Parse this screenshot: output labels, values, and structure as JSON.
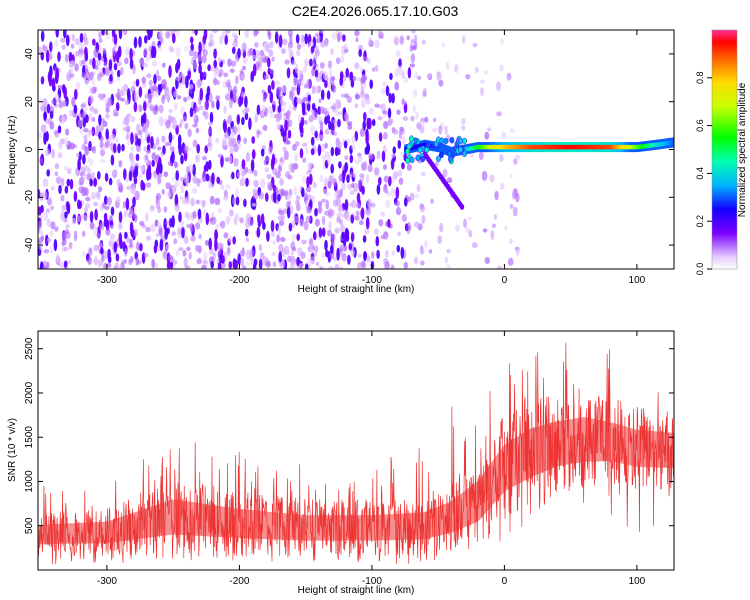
{
  "title": "C2E4.2026.065.17.10.G03",
  "chart_data": [
    {
      "type": "heatmap",
      "xlabel": "Height of straight line (km)",
      "ylabel": "Frequency (Hz)",
      "xlim": [
        -352,
        128
      ],
      "ylim": [
        -50,
        50
      ],
      "xticks": [
        -300,
        -200,
        -100,
        0,
        100
      ],
      "yticks": [
        -40,
        -20,
        0,
        20,
        40
      ],
      "colorbar": {
        "label": "Normalized spectral amplitude",
        "range": [
          0,
          1
        ],
        "ticks": [
          0.0,
          0.2,
          0.4,
          0.6,
          0.8
        ],
        "tick_labels": [
          "0.0",
          "0.2",
          "0.4",
          "0.6",
          "0.8"
        ]
      },
      "signal_line": {
        "x": [
          -75,
          -60,
          -50,
          -40,
          -30,
          -20,
          -10,
          0,
          20,
          50,
          80,
          100,
          115,
          128
        ],
        "y": [
          0,
          2,
          1,
          -1,
          0,
          1,
          1,
          1,
          1,
          1,
          1,
          1,
          2,
          3
        ],
        "amplitude": [
          0.25,
          0.25,
          0.3,
          0.3,
          0.35,
          0.55,
          0.7,
          0.8,
          0.9,
          0.95,
          0.9,
          0.6,
          0.4,
          0.3
        ]
      },
      "noise": {
        "x_range": [
          -352,
          -30
        ],
        "amplitude": 0.15
      },
      "grid": false
    },
    {
      "type": "line",
      "xlabel": "Height of straight line (km)",
      "ylabel": "SNR (10 * v/v)",
      "xlim": [
        -352,
        128
      ],
      "ylim": [
        0,
        2700
      ],
      "xticks": [
        -300,
        -200,
        -100,
        0,
        100
      ],
      "yticks": [
        500,
        1000,
        1500,
        2000,
        2500
      ],
      "color": "#ee3333",
      "envelope": {
        "x": [
          -352,
          -300,
          -250,
          -200,
          -150,
          -100,
          -60,
          -40,
          -20,
          0,
          20,
          40,
          60,
          80,
          100,
          128
        ],
        "low": [
          150,
          150,
          150,
          150,
          150,
          150,
          150,
          200,
          250,
          550,
          700,
          850,
          900,
          950,
          900,
          900
        ],
        "high": [
          650,
          700,
          1050,
          900,
          800,
          800,
          850,
          1000,
          1300,
          1750,
          1950,
          2000,
          2050,
          1950,
          1850,
          1800
        ],
        "max": [
          1000,
          1200,
          1500,
          1350,
          1200,
          1250,
          1400,
          1850,
          2000,
          2350,
          2500,
          2650,
          2600,
          2600,
          2300,
          2100
        ]
      },
      "grid": false
    }
  ]
}
